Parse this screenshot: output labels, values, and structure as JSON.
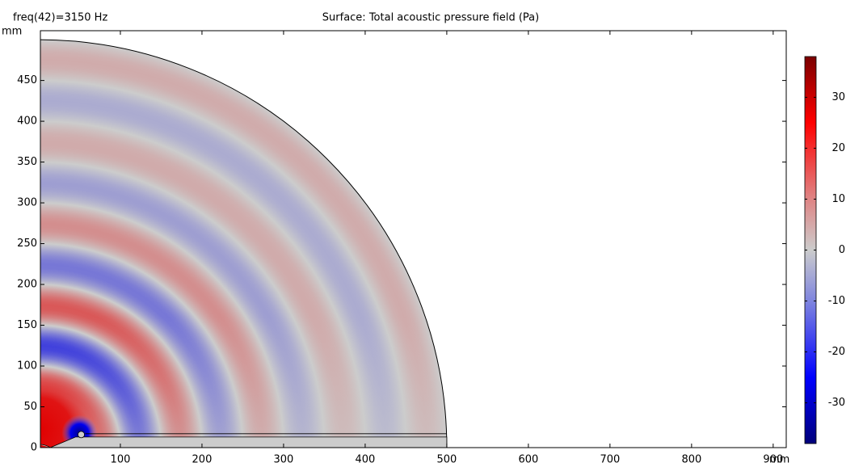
{
  "chart_data": {
    "type": "surface",
    "title": "Surface: Total acoustic pressure field (Pa)",
    "subtitle": "freq(42)=3150 Hz",
    "xlabel": "mm",
    "ylabel": "mm",
    "xlim": [
      2,
      916
    ],
    "ylim": [
      0,
      511
    ],
    "xticks": [
      100,
      200,
      300,
      400,
      500,
      600,
      700,
      800,
      900
    ],
    "yticks": [
      0,
      50,
      100,
      150,
      200,
      250,
      300,
      350,
      400,
      450
    ],
    "clim": [
      -38,
      38
    ],
    "cticks": [
      -30,
      -20,
      -10,
      0,
      10,
      20,
      30
    ]
  }
}
